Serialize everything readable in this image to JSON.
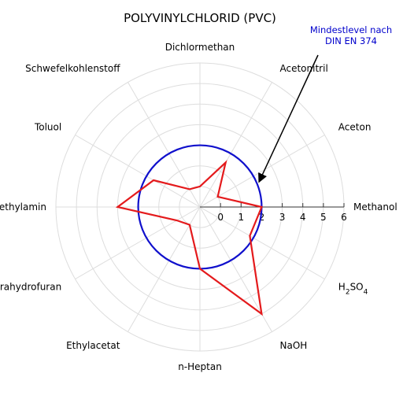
{
  "chart_data": {
    "type": "radar",
    "title": "POLYVINYLCHLORID (PVC)",
    "axes": [
      "Methanol",
      "Aceton",
      "Acetonitril",
      "Dichlormethan",
      "Schwefelkohlenstoff",
      "Toluol",
      "Diethylamin",
      "Tetrahydrofuran",
      "Ethylacetat",
      "n-Heptan",
      "NaOH",
      "H2SO4"
    ],
    "axis_label_parts": {
      "H2SO4": [
        "H",
        "2",
        "SO",
        "4"
      ]
    },
    "r_ticks": [
      "0",
      "1",
      "2",
      "3",
      "4",
      "5",
      "6"
    ],
    "r_range": [
      -1,
      6
    ],
    "grid": true,
    "series": [
      {
        "values": [
          2.0,
          0.0,
          1.5,
          0.0,
          0.0,
          1.6,
          3.0,
          0.3,
          0.0,
          2.0,
          5.0,
          1.8
        ]
      }
    ],
    "reference_level": {
      "value": 2.0,
      "annotation_lines": [
        "Mindestlevel nach",
        "DIN EN 374"
      ]
    },
    "colors": {
      "series": "#e41a1c",
      "reference": "#1010cc",
      "grid": "#dddddd",
      "axis": "#333333",
      "annotation_text": "#0000cc"
    }
  }
}
